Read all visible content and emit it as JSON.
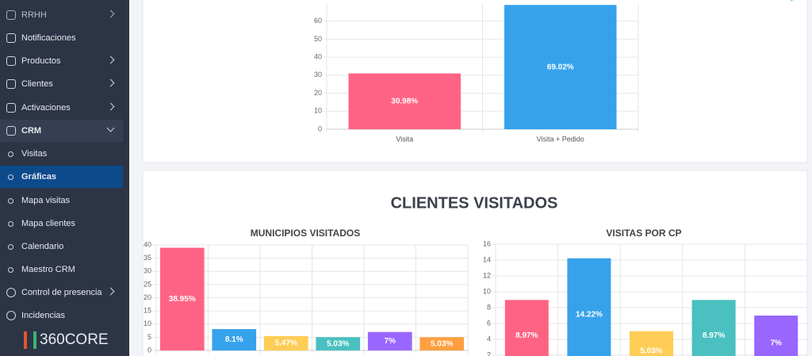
{
  "sidebar": {
    "items": [
      "RRHH",
      "Notificaciones",
      "Productos",
      "Clientes",
      "Activaciones",
      "CRM",
      "Visitas",
      "Gráficas",
      "Mapa visitas",
      "Mapa clientes",
      "Calendario",
      "Maestro CRM",
      "Control de presencia",
      "Incidencias"
    ],
    "logo": "360CORE"
  },
  "heading": "CLIENTES VISITADOS",
  "chart_data": [
    {
      "type": "bar",
      "categories": [
        "Visita",
        "Visita + Pedido"
      ],
      "values": [
        30.98,
        69.02
      ],
      "value_labels": [
        "30.98%",
        "69.02%"
      ],
      "colors": [
        "#ff6384",
        "#36a2eb"
      ],
      "ylim": [
        0,
        70
      ],
      "yticks": [
        0,
        10,
        20,
        30,
        40,
        50,
        60
      ],
      "grid": true
    },
    {
      "type": "bar",
      "title": "MUNICIPIOS VISITADOS",
      "categories": [
        null,
        null,
        null,
        null,
        null,
        null
      ],
      "values": [
        38.95,
        8.1,
        5.47,
        5.03,
        7,
        5.03
      ],
      "value_labels": [
        "38.95%",
        "8.1%",
        "5.47%",
        "5.03%",
        "7%",
        "5.03%"
      ],
      "colors": [
        "#ff6384",
        "#36a2eb",
        "#ffcd56",
        "#4bc0c0",
        "#9966ff",
        "#ff9f40"
      ],
      "ylim": [
        0,
        40
      ],
      "yticks": [
        0,
        5,
        10,
        15,
        20,
        25,
        30,
        35,
        40
      ],
      "grid": true
    },
    {
      "type": "bar",
      "title": "VISITAS POR CP",
      "categories": [
        null,
        null,
        null,
        null,
        null
      ],
      "values": [
        8.97,
        14.22,
        5.03,
        8.97,
        7
      ],
      "value_labels": [
        "8.97%",
        "14.22%",
        "5.03%",
        "8.97%",
        "7%"
      ],
      "colors": [
        "#ff6384",
        "#36a2eb",
        "#ffcd56",
        "#4bc0c0",
        "#9966ff"
      ],
      "ylim": [
        0,
        16
      ],
      "yticks": [
        2,
        4,
        6,
        8,
        10,
        12,
        14,
        16
      ],
      "grid": true
    }
  ]
}
